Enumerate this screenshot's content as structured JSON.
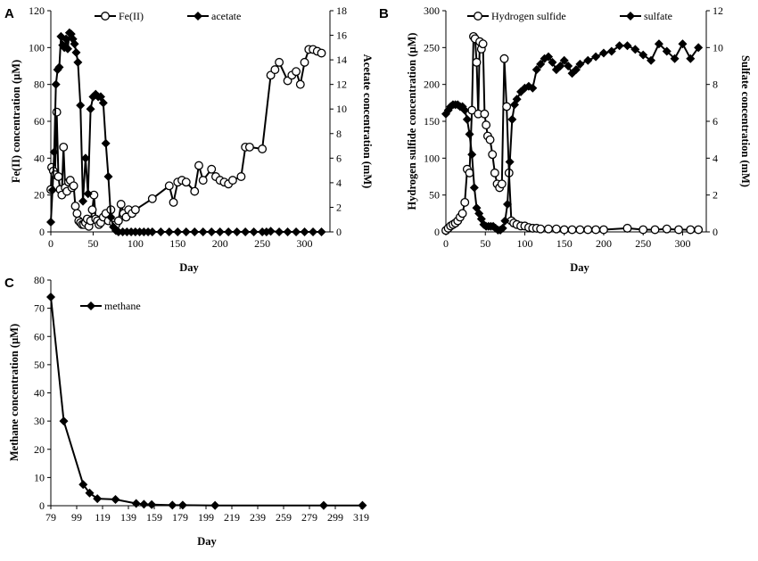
{
  "chart_data": [
    {
      "panel": "A",
      "type": "line",
      "xlabel": "Day",
      "ylabel_left": "Fe(II) concentration (μM)",
      "ylabel_right": "Acetate concentration (mM)",
      "xlim": [
        0,
        330
      ],
      "xticks": [
        0,
        50,
        100,
        150,
        200,
        250,
        300
      ],
      "ylim_left": [
        0,
        120
      ],
      "yticks_left": [
        0,
        20,
        40,
        60,
        80,
        100,
        120
      ],
      "ylim_right": [
        0,
        18
      ],
      "yticks_right": [
        0,
        2,
        4,
        6,
        8,
        10,
        12,
        14,
        16,
        18
      ],
      "legend_position": "top",
      "series": [
        {
          "name": "Fe(II)",
          "marker": "open-circle",
          "axis": "left",
          "x": [
            0,
            1,
            3,
            5,
            7,
            9,
            11,
            13,
            15,
            17,
            19,
            21,
            23,
            25,
            27,
            29,
            31,
            33,
            35,
            37,
            39,
            41,
            43,
            45,
            47,
            49,
            51,
            53,
            55,
            57,
            59,
            62,
            65,
            68,
            71,
            74,
            77,
            80,
            83,
            86,
            89,
            92,
            96,
            100,
            120,
            140,
            145,
            150,
            155,
            160,
            170,
            175,
            180,
            190,
            195,
            200,
            205,
            210,
            215,
            225,
            230,
            235,
            250,
            260,
            265,
            270,
            280,
            285,
            290,
            295,
            300,
            305,
            310,
            315,
            320
          ],
          "values": [
            23,
            35,
            33,
            31,
            65,
            30,
            23,
            20,
            46,
            24,
            22,
            27,
            28,
            24,
            25,
            14,
            10,
            6,
            5,
            4,
            4,
            5,
            7,
            3,
            6,
            12,
            20,
            7,
            6,
            4,
            5,
            8,
            10,
            6,
            12,
            5,
            4,
            6,
            15,
            10,
            8,
            12,
            10,
            12,
            18,
            25,
            16,
            27,
            28,
            27,
            22,
            36,
            28,
            34,
            30,
            28,
            27,
            26,
            28,
            30,
            46,
            46,
            45,
            85,
            88,
            92,
            82,
            85,
            87,
            80,
            92,
            99,
            99,
            98,
            97
          ]
        },
        {
          "name": "acetate",
          "marker": "filled-diamond",
          "axis": "right",
          "x": [
            0,
            2,
            4,
            6,
            8,
            10,
            12,
            14,
            16,
            18,
            20,
            22,
            24,
            26,
            28,
            30,
            32,
            35,
            38,
            41,
            44,
            47,
            50,
            53,
            56,
            59,
            62,
            65,
            68,
            71,
            74,
            77,
            80,
            85,
            90,
            95,
            100,
            105,
            110,
            115,
            120,
            130,
            140,
            150,
            160,
            170,
            180,
            190,
            200,
            210,
            220,
            230,
            240,
            250,
            255,
            260,
            270,
            280,
            290,
            300,
            310,
            320
          ],
          "values": [
            0.8,
            3.4,
            6.5,
            12.0,
            13.2,
            13.4,
            15.9,
            15.2,
            15.0,
            15.7,
            14.9,
            16.2,
            16.1,
            15.7,
            15.3,
            14.6,
            13.8,
            10.3,
            2.5,
            6.0,
            3.1,
            10.0,
            11.0,
            11.2,
            11.0,
            11.0,
            10.5,
            7.2,
            4.5,
            1.2,
            0.4,
            0.1,
            0.0,
            0.0,
            0.0,
            0.0,
            0.0,
            0.0,
            0.0,
            0.0,
            0.0,
            0.0,
            0.0,
            0.0,
            0.0,
            0.0,
            0.0,
            0.0,
            0.0,
            0.0,
            0.0,
            0.0,
            0.0,
            0.0,
            0.0,
            0.05,
            0.0,
            0.0,
            0.0,
            0.0,
            0.0,
            0.0
          ]
        }
      ]
    },
    {
      "panel": "B",
      "type": "line",
      "xlabel": "Day",
      "ylabel_left": "Hydrogen sulfide concentration (μM)",
      "ylabel_right": "Sulfate concentration (mM)",
      "xlim": [
        0,
        330
      ],
      "xticks": [
        0,
        50,
        100,
        150,
        200,
        250,
        300
      ],
      "ylim_left": [
        0,
        300
      ],
      "yticks_left": [
        0,
        50,
        100,
        150,
        200,
        250,
        300
      ],
      "ylim_right": [
        0,
        12
      ],
      "yticks_right": [
        0,
        2,
        4,
        6,
        8,
        10,
        12
      ],
      "legend_position": "top",
      "series": [
        {
          "name": "Hydrogen sulfide",
          "marker": "open-circle",
          "axis": "left",
          "x": [
            0,
            3,
            6,
            9,
            12,
            15,
            18,
            21,
            24,
            27,
            30,
            33,
            35,
            37,
            39,
            41,
            43,
            45,
            47,
            49,
            51,
            53,
            56,
            59,
            62,
            65,
            68,
            71,
            74,
            77,
            80,
            83,
            86,
            90,
            95,
            100,
            105,
            110,
            115,
            120,
            130,
            140,
            150,
            160,
            170,
            180,
            190,
            200,
            230,
            250,
            265,
            280,
            295,
            310,
            320
          ],
          "values": [
            2,
            5,
            8,
            10,
            12,
            15,
            20,
            25,
            40,
            85,
            80,
            165,
            265,
            262,
            230,
            160,
            258,
            248,
            255,
            160,
            145,
            130,
            125,
            105,
            80,
            65,
            60,
            65,
            235,
            170,
            80,
            15,
            12,
            10,
            8,
            8,
            6,
            5,
            5,
            4,
            4,
            4,
            3,
            3,
            3,
            3,
            3,
            3,
            5,
            3,
            3,
            4,
            3,
            3,
            3
          ]
        },
        {
          "name": "sulfate",
          "marker": "filled-diamond",
          "axis": "right",
          "x": [
            0,
            3,
            6,
            9,
            12,
            15,
            18,
            21,
            24,
            27,
            30,
            33,
            36,
            39,
            42,
            45,
            48,
            51,
            54,
            57,
            60,
            63,
            66,
            69,
            72,
            75,
            78,
            81,
            84,
            87,
            90,
            95,
            100,
            105,
            110,
            115,
            120,
            125,
            130,
            135,
            140,
            145,
            150,
            155,
            160,
            165,
            170,
            180,
            190,
            200,
            210,
            220,
            230,
            240,
            250,
            260,
            270,
            280,
            290,
            300,
            310,
            320
          ],
          "values": [
            6.4,
            6.6,
            6.8,
            6.9,
            6.9,
            6.9,
            6.8,
            6.8,
            6.6,
            6.1,
            5.3,
            4.2,
            2.4,
            1.3,
            1.0,
            0.7,
            0.4,
            0.3,
            0.3,
            0.3,
            0.3,
            0.2,
            0.1,
            0.1,
            0.2,
            0.6,
            1.5,
            3.8,
            6.1,
            6.9,
            7.2,
            7.6,
            7.8,
            7.9,
            7.8,
            8.8,
            9.1,
            9.4,
            9.5,
            9.2,
            8.8,
            9.0,
            9.3,
            9.0,
            8.6,
            8.8,
            9.1,
            9.3,
            9.5,
            9.7,
            9.8,
            10.1,
            10.1,
            9.9,
            9.6,
            9.3,
            10.2,
            9.8,
            9.4,
            10.2,
            9.4,
            10.0
          ]
        }
      ]
    },
    {
      "panel": "C",
      "type": "line",
      "xlabel": "Day",
      "ylabel": "Methane concentration (μM)",
      "xlim": [
        79,
        319
      ],
      "xticks": [
        79,
        99,
        119,
        139,
        159,
        179,
        199,
        219,
        239,
        259,
        279,
        299,
        319
      ],
      "ylim": [
        0,
        80
      ],
      "yticks": [
        0,
        10,
        20,
        30,
        40,
        50,
        60,
        70,
        80
      ],
      "legend_position": "top-left",
      "series": [
        {
          "name": "methane",
          "marker": "filled-diamond",
          "x": [
            79,
            89,
            104,
            109,
            115,
            129,
            145,
            151,
            157,
            173,
            181,
            206,
            290,
            320
          ],
          "values": [
            74,
            30,
            7.5,
            4.5,
            2.5,
            2.2,
            0.8,
            0.5,
            0.4,
            0.2,
            0.2,
            0.1,
            0.1,
            0.1
          ]
        }
      ]
    }
  ]
}
